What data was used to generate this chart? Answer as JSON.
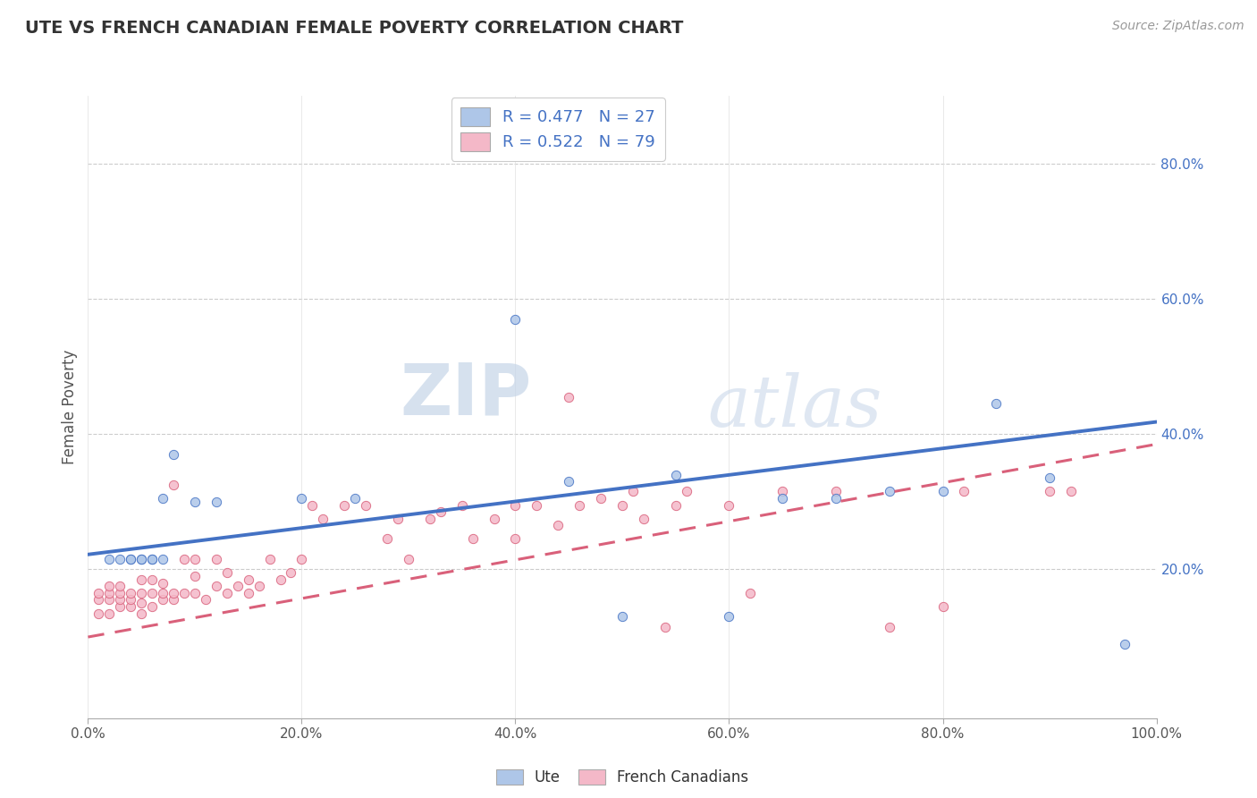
{
  "title": "UTE VS FRENCH CANADIAN FEMALE POVERTY CORRELATION CHART",
  "source": "Source: ZipAtlas.com",
  "xlabel": "",
  "ylabel": "Female Poverty",
  "xlim": [
    0.0,
    1.0
  ],
  "ylim": [
    -0.02,
    0.9
  ],
  "xtick_labels": [
    "0.0%",
    "20.0%",
    "40.0%",
    "60.0%",
    "80.0%",
    "100.0%"
  ],
  "xtick_vals": [
    0.0,
    0.2,
    0.4,
    0.6,
    0.8,
    1.0
  ],
  "ytick_labels": [
    "20.0%",
    "40.0%",
    "60.0%",
    "80.0%"
  ],
  "ytick_vals": [
    0.2,
    0.4,
    0.6,
    0.8
  ],
  "ute_R": 0.477,
  "ute_N": 27,
  "fc_R": 0.522,
  "fc_N": 79,
  "ute_color": "#aec6e8",
  "fc_color": "#f4b8c8",
  "ute_line_color": "#4472c4",
  "fc_line_color": "#d9607a",
  "watermark_zip": "ZIP",
  "watermark_atlas": "atlas",
  "legend_label_ute": "Ute",
  "legend_label_fc": "French Canadians",
  "ute_scatter": [
    [
      0.02,
      0.215
    ],
    [
      0.03,
      0.215
    ],
    [
      0.04,
      0.215
    ],
    [
      0.04,
      0.215
    ],
    [
      0.05,
      0.215
    ],
    [
      0.05,
      0.215
    ],
    [
      0.06,
      0.215
    ],
    [
      0.06,
      0.215
    ],
    [
      0.07,
      0.215
    ],
    [
      0.07,
      0.305
    ],
    [
      0.08,
      0.37
    ],
    [
      0.1,
      0.3
    ],
    [
      0.12,
      0.3
    ],
    [
      0.2,
      0.305
    ],
    [
      0.25,
      0.305
    ],
    [
      0.4,
      0.57
    ],
    [
      0.45,
      0.33
    ],
    [
      0.5,
      0.13
    ],
    [
      0.55,
      0.34
    ],
    [
      0.6,
      0.13
    ],
    [
      0.65,
      0.305
    ],
    [
      0.7,
      0.305
    ],
    [
      0.75,
      0.315
    ],
    [
      0.8,
      0.315
    ],
    [
      0.85,
      0.445
    ],
    [
      0.9,
      0.335
    ],
    [
      0.97,
      0.09
    ]
  ],
  "fc_scatter": [
    [
      0.01,
      0.135
    ],
    [
      0.01,
      0.155
    ],
    [
      0.01,
      0.165
    ],
    [
      0.02,
      0.135
    ],
    [
      0.02,
      0.155
    ],
    [
      0.02,
      0.165
    ],
    [
      0.02,
      0.175
    ],
    [
      0.03,
      0.145
    ],
    [
      0.03,
      0.155
    ],
    [
      0.03,
      0.165
    ],
    [
      0.03,
      0.175
    ],
    [
      0.04,
      0.145
    ],
    [
      0.04,
      0.155
    ],
    [
      0.04,
      0.165
    ],
    [
      0.05,
      0.135
    ],
    [
      0.05,
      0.15
    ],
    [
      0.05,
      0.165
    ],
    [
      0.05,
      0.185
    ],
    [
      0.06,
      0.145
    ],
    [
      0.06,
      0.165
    ],
    [
      0.06,
      0.185
    ],
    [
      0.07,
      0.155
    ],
    [
      0.07,
      0.165
    ],
    [
      0.07,
      0.18
    ],
    [
      0.08,
      0.155
    ],
    [
      0.08,
      0.165
    ],
    [
      0.08,
      0.325
    ],
    [
      0.09,
      0.165
    ],
    [
      0.09,
      0.215
    ],
    [
      0.1,
      0.165
    ],
    [
      0.1,
      0.19
    ],
    [
      0.1,
      0.215
    ],
    [
      0.11,
      0.155
    ],
    [
      0.12,
      0.175
    ],
    [
      0.12,
      0.215
    ],
    [
      0.13,
      0.165
    ],
    [
      0.13,
      0.195
    ],
    [
      0.14,
      0.175
    ],
    [
      0.15,
      0.165
    ],
    [
      0.15,
      0.185
    ],
    [
      0.16,
      0.175
    ],
    [
      0.17,
      0.215
    ],
    [
      0.18,
      0.185
    ],
    [
      0.19,
      0.195
    ],
    [
      0.2,
      0.215
    ],
    [
      0.21,
      0.295
    ],
    [
      0.22,
      0.275
    ],
    [
      0.24,
      0.295
    ],
    [
      0.26,
      0.295
    ],
    [
      0.28,
      0.245
    ],
    [
      0.29,
      0.275
    ],
    [
      0.3,
      0.215
    ],
    [
      0.32,
      0.275
    ],
    [
      0.33,
      0.285
    ],
    [
      0.35,
      0.295
    ],
    [
      0.36,
      0.245
    ],
    [
      0.38,
      0.275
    ],
    [
      0.4,
      0.245
    ],
    [
      0.4,
      0.295
    ],
    [
      0.42,
      0.295
    ],
    [
      0.44,
      0.265
    ],
    [
      0.45,
      0.455
    ],
    [
      0.46,
      0.295
    ],
    [
      0.48,
      0.305
    ],
    [
      0.5,
      0.295
    ],
    [
      0.51,
      0.315
    ],
    [
      0.52,
      0.275
    ],
    [
      0.54,
      0.115
    ],
    [
      0.55,
      0.295
    ],
    [
      0.56,
      0.315
    ],
    [
      0.6,
      0.295
    ],
    [
      0.62,
      0.165
    ],
    [
      0.65,
      0.315
    ],
    [
      0.7,
      0.315
    ],
    [
      0.75,
      0.115
    ],
    [
      0.8,
      0.145
    ],
    [
      0.82,
      0.315
    ],
    [
      0.9,
      0.315
    ],
    [
      0.92,
      0.315
    ]
  ],
  "ute_reg": [
    0.0,
    1.0,
    0.222,
    0.418
  ],
  "fc_reg": [
    0.0,
    1.0,
    0.1,
    0.385
  ]
}
